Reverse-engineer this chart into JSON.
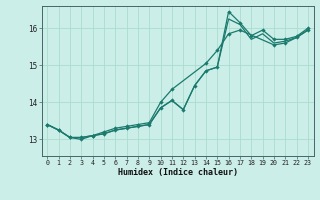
{
  "xlabel": "Humidex (Indice chaleur)",
  "background_color": "#cceee8",
  "grid_color": "#aaddcc",
  "line_color": "#1a7a6e",
  "xlim": [
    -0.5,
    23.5
  ],
  "ylim": [
    12.55,
    16.6
  ],
  "yticks": [
    13,
    14,
    15,
    16
  ],
  "xticks": [
    0,
    1,
    2,
    3,
    4,
    5,
    6,
    7,
    8,
    9,
    10,
    11,
    12,
    13,
    14,
    15,
    16,
    17,
    18,
    19,
    20,
    21,
    22,
    23
  ],
  "line1_x": [
    0,
    1,
    2,
    3,
    4,
    5,
    6,
    7,
    8,
    9,
    10,
    11,
    12,
    13,
    14,
    15,
    16,
    17,
    18,
    19,
    20,
    21,
    22,
    23
  ],
  "line1_y": [
    13.4,
    13.25,
    13.05,
    13.05,
    13.1,
    13.15,
    13.25,
    13.3,
    13.35,
    13.4,
    13.85,
    14.05,
    13.8,
    14.45,
    14.85,
    14.95,
    16.45,
    16.15,
    15.8,
    15.95,
    15.7,
    15.7,
    15.78,
    16.0
  ],
  "line2_x": [
    0,
    1,
    2,
    3,
    4,
    5,
    6,
    7,
    8,
    9,
    10,
    11,
    12,
    13,
    14,
    15,
    16,
    17,
    18,
    19,
    20,
    21,
    22,
    23
  ],
  "line2_y": [
    13.4,
    13.25,
    13.05,
    13.05,
    13.1,
    13.15,
    13.25,
    13.3,
    13.35,
    13.4,
    13.85,
    14.05,
    13.8,
    14.45,
    14.85,
    14.95,
    16.25,
    16.1,
    15.7,
    15.85,
    15.6,
    15.65,
    15.75,
    15.95
  ],
  "line3_x": [
    0,
    1,
    2,
    3,
    4,
    5,
    6,
    7,
    8,
    9,
    10,
    11,
    14,
    15,
    16,
    17,
    20,
    21,
    22,
    23
  ],
  "line3_y": [
    13.4,
    13.25,
    13.05,
    13.0,
    13.1,
    13.2,
    13.3,
    13.35,
    13.4,
    13.45,
    14.0,
    14.35,
    15.05,
    15.4,
    15.85,
    15.95,
    15.55,
    15.6,
    15.75,
    15.95
  ]
}
